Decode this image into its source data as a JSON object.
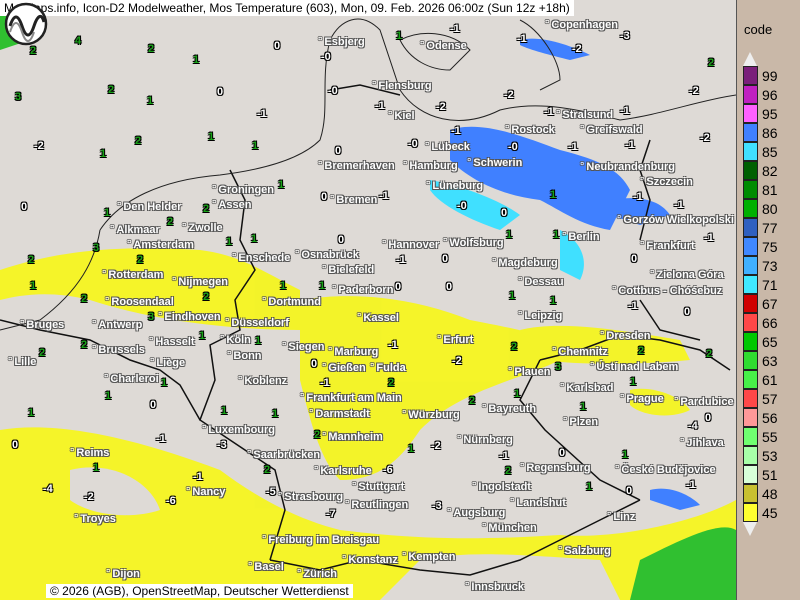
{
  "title": "MetMaps.info, Icon-D2 Modelweather, Mos Temperature (603), Mon, 09. Feb. 2026 06:00z (Sun 12z +18h)",
  "copyright": "© 2026 (AGB), OpenStreetMap, Deutscher Wetterdienst",
  "logo_text": "METMAPS",
  "legend": {
    "title": "code",
    "items": [
      {
        "code": "99",
        "color": "#7a1f7a"
      },
      {
        "code": "96",
        "color": "#c020c0"
      },
      {
        "code": "95",
        "color": "#ff60ff"
      },
      {
        "code": "86",
        "color": "#4080ff"
      },
      {
        "code": "85",
        "color": "#40e0ff"
      },
      {
        "code": "82",
        "color": "#006000"
      },
      {
        "code": "81",
        "color": "#008c00"
      },
      {
        "code": "80",
        "color": "#00b000"
      },
      {
        "code": "77",
        "color": "#3060c0"
      },
      {
        "code": "75",
        "color": "#4088ff"
      },
      {
        "code": "73",
        "color": "#40b0ff"
      },
      {
        "code": "71",
        "color": "#40e8ff"
      },
      {
        "code": "67",
        "color": "#d00000"
      },
      {
        "code": "66",
        "color": "#ff4848"
      },
      {
        "code": "65",
        "color": "#00c800"
      },
      {
        "code": "63",
        "color": "#30dc30"
      },
      {
        "code": "61",
        "color": "#48f048"
      },
      {
        "code": "57",
        "color": "#ff4848"
      },
      {
        "code": "56",
        "color": "#ff9898"
      },
      {
        "code": "55",
        "color": "#70ff70"
      },
      {
        "code": "53",
        "color": "#a8ffa8"
      },
      {
        "code": "51",
        "color": "#d8ffd8"
      },
      {
        "code": "48",
        "color": "#c8c030"
      },
      {
        "code": "45",
        "color": "#ffff30"
      }
    ]
  },
  "cities": [
    "Esbjerg",
    "Odense",
    "Copenhagen",
    "Flensburg",
    "Kiel",
    "Stralsund",
    "Rostock",
    "Greifswald",
    "Lübeck",
    "Schwerin",
    "Neubrandenburg",
    "Szczecin",
    "Bremerhaven",
    "Hamburg",
    "Groningen",
    "Assen",
    "Bremen",
    "Lüneburg",
    "Den Helder",
    "Alkmaar",
    "Amsterdam",
    "Zwolle",
    "Gorzów Wielkopolski",
    "Berlin",
    "Frankfurt",
    "Enschede",
    "Osnabrück",
    "Hannover",
    "Wolfsburg",
    "Magdeburg",
    "Rotterdam",
    "Nijmegen",
    "Bielefeld",
    "Dessau",
    "Zielona Góra",
    "Cottbus - Chóśebuz",
    "Paderborn",
    "Roosendaal",
    "Eindhoven",
    "Dortmund",
    "Leipzig",
    "Antwerp",
    "Bruges",
    "Düsseldorf",
    "Kassel",
    "Dresden",
    "Brussels",
    "Hasselt",
    "Köln",
    "Siegen",
    "Marburg",
    "Erfurt",
    "Chemnitz",
    "Ústí nad Labem",
    "Liège",
    "Bonn",
    "Gießen",
    "Fulda",
    "Lille",
    "Charleroi",
    "Koblenz",
    "Plauen",
    "Karlsbad",
    "Frankfurt am Main",
    "Prague",
    "Pardubice",
    "Darmstadt",
    "Würzburg",
    "Bayreuth",
    "Luxembourg",
    "Mannheim",
    "Plzen",
    "Jihlava",
    "Nürnberg",
    "Reims",
    "Saarbrücken",
    "Karlsruhe",
    "Regensburg",
    "České Budějovice",
    "Stuttgart",
    "Ingolstadt",
    "Nancy",
    "Strasbourg",
    "Reutlingen",
    "Augsburg",
    "Landshut",
    "Linz",
    "Troyes",
    "München",
    "Freiburg im Breisgau",
    "Salzburg",
    "Konstanz",
    "Kempten",
    "Basel",
    "Zürich",
    "Innsbruck",
    "Dijon"
  ],
  "temperatures": [
    2,
    4,
    2,
    1,
    0,
    0,
    1,
    -1,
    -1,
    -2,
    -3,
    2,
    3,
    2,
    1,
    0,
    -1,
    0,
    -1,
    -2,
    -2,
    -1,
    -1,
    -2,
    -2,
    1,
    2,
    1,
    1,
    0,
    0,
    -1,
    0,
    -1,
    -1,
    -2,
    0,
    1,
    2,
    2,
    1,
    0,
    -1,
    0,
    0,
    1,
    -1,
    -1,
    2,
    3,
    2,
    1,
    1,
    0,
    -1,
    0,
    1,
    1,
    0,
    -1,
    1,
    2,
    3,
    2,
    1,
    1,
    0,
    0,
    1,
    1,
    -1,
    0,
    2,
    2,
    1,
    1,
    1,
    0,
    -1,
    -2,
    2,
    3,
    2,
    2,
    1,
    1,
    0,
    1,
    1,
    -1,
    2,
    2,
    1,
    1,
    1,
    0,
    0,
    1,
    -1,
    -3,
    2,
    2,
    1,
    -2,
    -1,
    0,
    1,
    -4,
    -4,
    -2,
    -6,
    -1,
    -5,
    -7,
    -6,
    -3,
    2,
    1,
    0,
    -1
  ]
}
